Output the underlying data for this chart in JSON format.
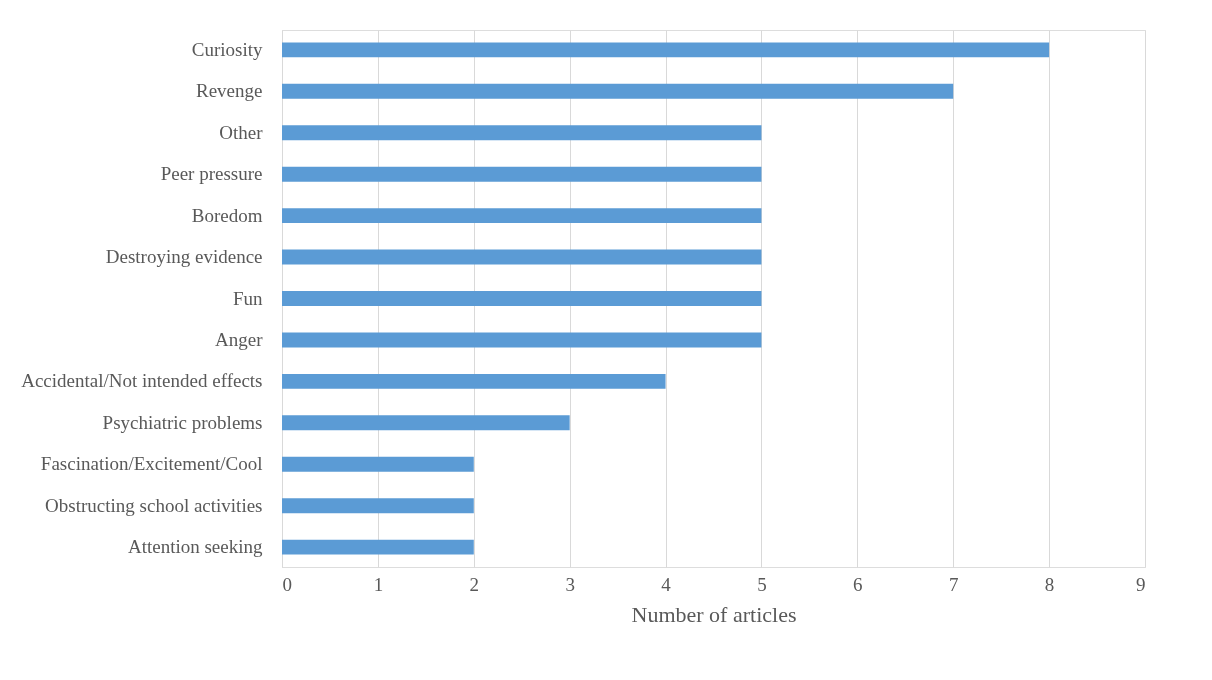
{
  "chart_data": {
    "type": "bar",
    "orientation": "horizontal",
    "xlabel": "Number of articles",
    "categories": [
      "Curiosity",
      "Revenge",
      "Other",
      "Peer pressure",
      "Boredom",
      "Destroying evidence",
      "Fun",
      "Anger",
      "Accidental/Not intended effects",
      "Psychiatric problems",
      "Fascination/Excitement/Cool",
      "Obstructing school activities",
      "Attention seeking"
    ],
    "values": [
      8,
      7,
      5,
      5,
      5,
      5,
      5,
      5,
      4,
      3,
      2,
      2,
      2
    ],
    "color": "#5b9bd5",
    "xlim": [
      0,
      9
    ],
    "xticks": [
      0,
      1,
      2,
      3,
      4,
      5,
      6,
      7,
      8,
      9
    ],
    "grid": "x"
  }
}
